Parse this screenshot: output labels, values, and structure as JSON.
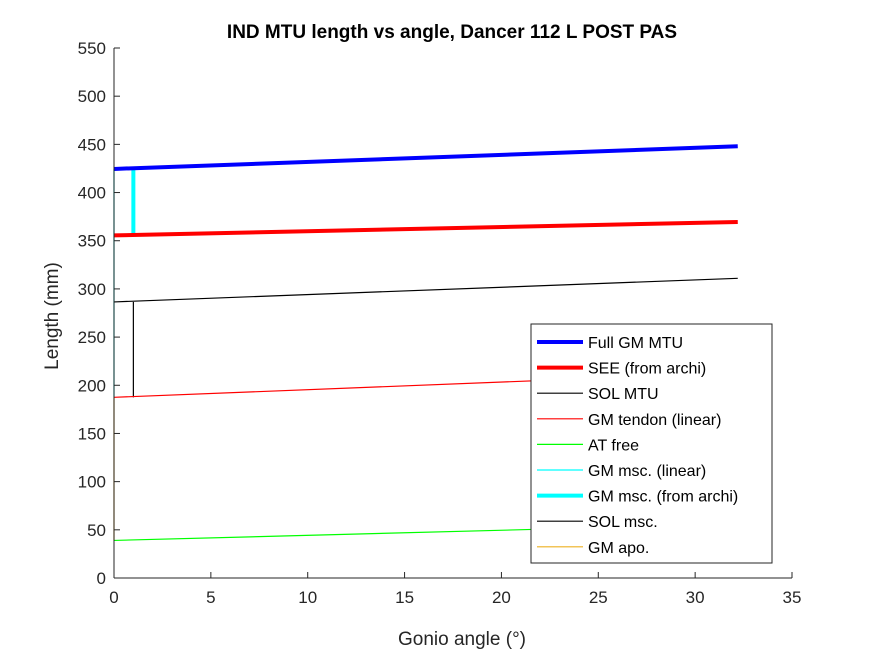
{
  "chart_data": {
    "type": "line",
    "title": "IND MTU length vs angle, Dancer 112 L POST PAS",
    "xlabel": "Gonio angle (°)",
    "ylabel": "Length (mm)",
    "xlim": [
      0,
      35
    ],
    "ylim": [
      0,
      550
    ],
    "xticks": [
      0,
      5,
      10,
      15,
      20,
      25,
      30,
      35
    ],
    "yticks": [
      0,
      50,
      100,
      150,
      200,
      250,
      300,
      350,
      400,
      450,
      500,
      550
    ],
    "grid": false,
    "legend_position": "bottom-right",
    "series": [
      {
        "name": "Full GM MTU",
        "color": "#0000ff",
        "x": [
          0,
          32.2
        ],
        "y": [
          424.5,
          448.0
        ]
      },
      {
        "name": "SEE (from archi)",
        "color": "#ff0000",
        "x": [
          0,
          32.2
        ],
        "y": [
          355.5,
          369.5
        ]
      },
      {
        "name": "SOL MTU",
        "color": "#000000",
        "x": [
          0,
          32.2
        ],
        "y": [
          286.5,
          311.0
        ]
      },
      {
        "name": "GM tendon (linear)",
        "color": "#ff0000",
        "x": [
          0,
          32.2
        ],
        "y": [
          187.5,
          213.0
        ]
      },
      {
        "name": "AT free",
        "color": "#00ff00",
        "x": [
          0,
          32.2
        ],
        "y": [
          39.0,
          56.0
        ]
      },
      {
        "name": "GM msc. (linear)",
        "color": "#00ffff",
        "x": [
          0,
          0
        ],
        "y": [
          187.5,
          424.5
        ]
      },
      {
        "name": "GM msc. (from archi)",
        "color": "#00ffff",
        "x": [
          1.0,
          1.0
        ],
        "y": [
          355.5,
          424.0
        ]
      },
      {
        "name": "SOL msc.",
        "color": "#000000",
        "x": [
          1.0,
          1.0
        ],
        "y": [
          187.5,
          286.5
        ]
      },
      {
        "name": "GM apo.",
        "color": "#edb120",
        "x": [
          0,
          0
        ],
        "y": [
          39.0,
          187.5
        ]
      }
    ]
  }
}
